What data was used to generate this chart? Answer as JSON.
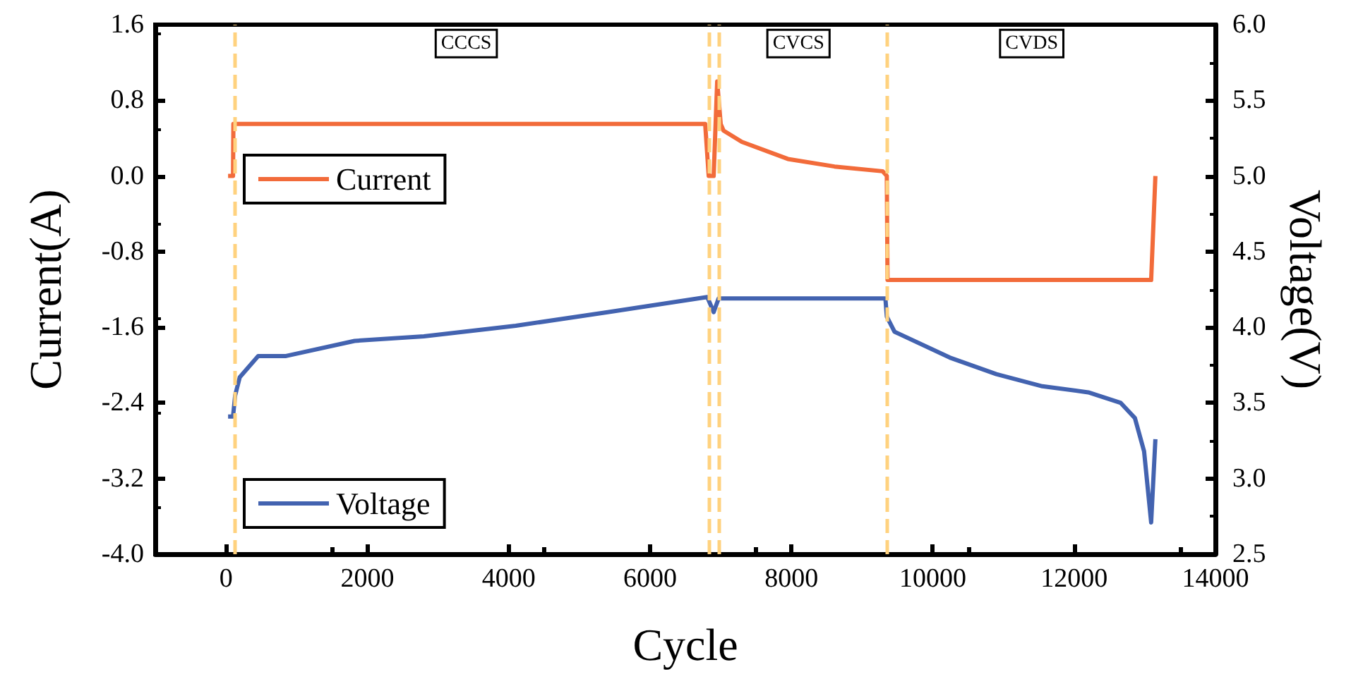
{
  "chart_data": {
    "type": "line",
    "xlabel": "Cycle",
    "ylabel": "Current(A)",
    "y2label": "Voltage(V)",
    "xlim": [
      -1000,
      14000
    ],
    "xticks": [
      0,
      2000,
      4000,
      6000,
      8000,
      10000,
      12000,
      14000
    ],
    "ylim": [
      -4.0,
      1.6
    ],
    "yticks": [
      {
        "value": -4.0,
        "label": "-4.0"
      },
      {
        "value": -3.2,
        "label": "-3.2"
      },
      {
        "value": -2.4,
        "label": "-2.4"
      },
      {
        "value": -1.6,
        "label": "-1.6"
      },
      {
        "value": -0.8,
        "label": "-0.8"
      },
      {
        "value": 0,
        "label": "0.0"
      },
      {
        "value": 0.8,
        "label": "0.8"
      },
      {
        "value": 1.6,
        "label": "1.6"
      }
    ],
    "y2lim": [
      2.5,
      6.0
    ],
    "y2ticks": [
      {
        "value": 2.5,
        "label": "2.5"
      },
      {
        "value": 3,
        "label": "3.0"
      },
      {
        "value": 3.5,
        "label": "3.5"
      },
      {
        "value": 4,
        "label": "4.0"
      },
      {
        "value": 4.5,
        "label": "4.5"
      },
      {
        "value": 5,
        "label": "5.0"
      },
      {
        "value": 5.5,
        "label": "5.5"
      },
      {
        "value": 6,
        "label": "6.0"
      }
    ],
    "series": [
      {
        "name": "Current",
        "color": "#f26b3a",
        "x": [
          30,
          100,
          105,
          6780,
          6830,
          6900,
          6950,
          7000,
          7040,
          7300,
          7950,
          8610,
          9290,
          9350,
          9360,
          13090,
          13150
        ],
        "values": [
          0,
          0,
          0.55,
          0.55,
          0,
          0,
          1.0,
          0.55,
          0.48,
          0.36,
          0.18,
          0.1,
          0.05,
          0,
          -1.1,
          -1.1,
          0
        ]
      },
      {
        "name": "Voltage",
        "color": "#4363b0",
        "axis": "y2",
        "x": [
          30,
          100,
          130,
          195,
          456,
          850,
          1820,
          2800,
          4100,
          5400,
          6810,
          6900,
          6970,
          9330,
          9350,
          9460,
          10240,
          10900,
          11550,
          12200,
          12660,
          12860,
          12990,
          13090,
          13150
        ],
        "values": [
          3.41,
          3.41,
          3.55,
          3.67,
          3.81,
          3.81,
          3.91,
          3.94,
          4.01,
          4.1,
          4.2,
          4.1,
          4.19,
          4.19,
          4.07,
          3.97,
          3.8,
          3.69,
          3.61,
          3.57,
          3.5,
          3.4,
          3.18,
          2.71,
          3.26
        ]
      }
    ],
    "ref_lines": [
      {
        "axis": "x",
        "value": 130,
        "color": "#ffd27f",
        "line_style": "dashed"
      },
      {
        "axis": "x",
        "value": 6840,
        "color": "#ffd27f",
        "line_style": "dashed"
      },
      {
        "axis": "x",
        "value": 6970,
        "color": "#ffd27f",
        "line_style": "dashed"
      },
      {
        "axis": "x",
        "value": 9350,
        "color": "#ffd27f",
        "line_style": "dashed"
      }
    ],
    "annotations": [
      {
        "text": "CCCS",
        "x": 3400,
        "y": 1.4
      },
      {
        "text": "CVCS",
        "x": 8100,
        "y": 1.4
      },
      {
        "text": "CVDS",
        "x": 11400,
        "y": 1.4
      }
    ],
    "legend": "left",
    "grid": false,
    "marker": "none",
    "line_style": "solid"
  }
}
